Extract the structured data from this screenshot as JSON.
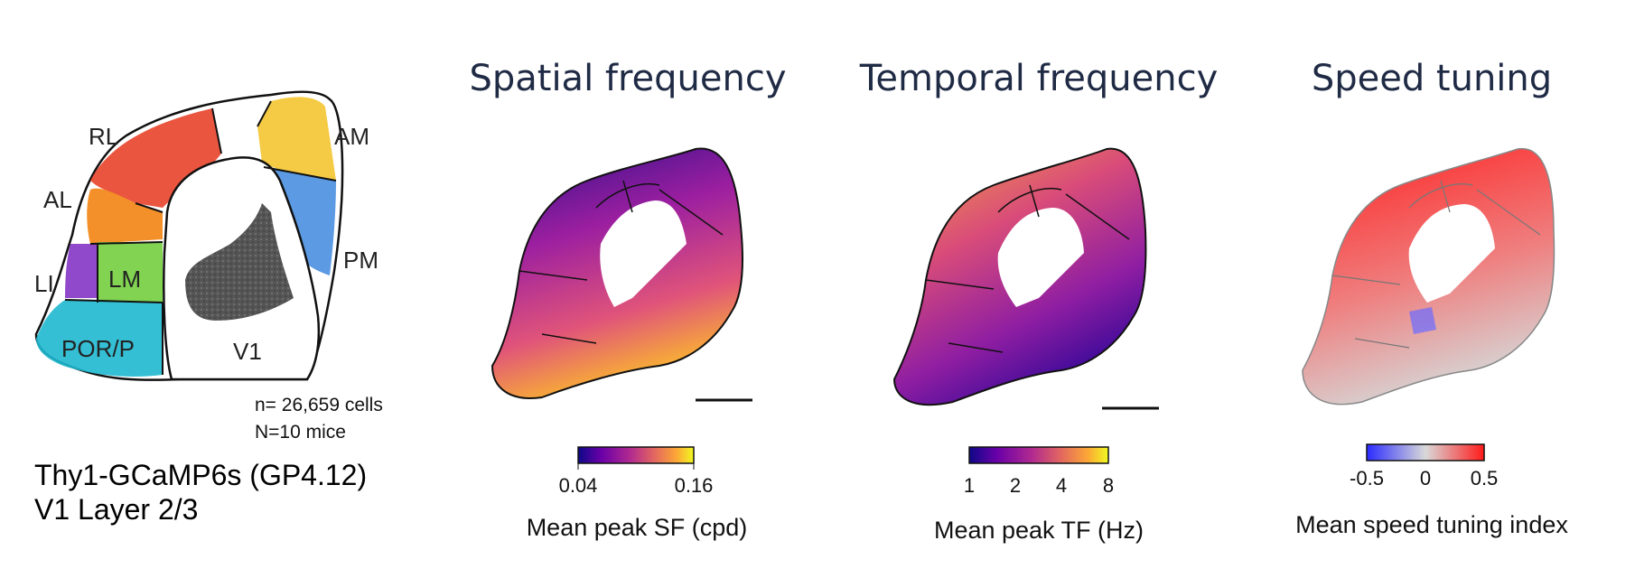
{
  "panels": [
    {
      "id": "areas",
      "title": ""
    },
    {
      "id": "sf",
      "title": "Spatial frequency",
      "colorbar_label": "Mean peak SF (cpd)",
      "ticks": [
        "0.04",
        "0.16"
      ]
    },
    {
      "id": "tf",
      "title": "Temporal frequency",
      "colorbar_label": "Mean peak TF (Hz)",
      "ticks": [
        "1",
        "2",
        "4",
        "8"
      ]
    },
    {
      "id": "speed",
      "title": "Speed tuning",
      "colorbar_label": "Mean speed tuning index",
      "ticks": [
        "-0.5",
        "0",
        "0.5"
      ]
    }
  ],
  "area_labels": [
    "RL",
    "AM",
    "AL",
    "PM",
    "LI",
    "LM",
    "POR/P",
    "V1"
  ],
  "counts": {
    "cells": "n= 26,659 cells",
    "mice": "N=10 mice"
  },
  "caption": {
    "line1": "Thy1-GCaMP6s (GP4.12)",
    "line2": "V1 Layer 2/3"
  },
  "colors": {
    "RL": "#e8432a",
    "AM": "#f4c430",
    "AL": "#f28a1e",
    "PM": "#4a8fe0",
    "LI": "#8a3fc7",
    "LM": "#7ad148",
    "POR": "#1fb8cf",
    "V1": "#555555",
    "title": "#1f2a44"
  },
  "colormaps": {
    "plasma": [
      "#0d0887",
      "#6a00a8",
      "#b12a90",
      "#e16462",
      "#fca636",
      "#f0f921"
    ],
    "diverging": [
      "#2b2bff",
      "#d9d9d9",
      "#ff1a1a"
    ]
  }
}
